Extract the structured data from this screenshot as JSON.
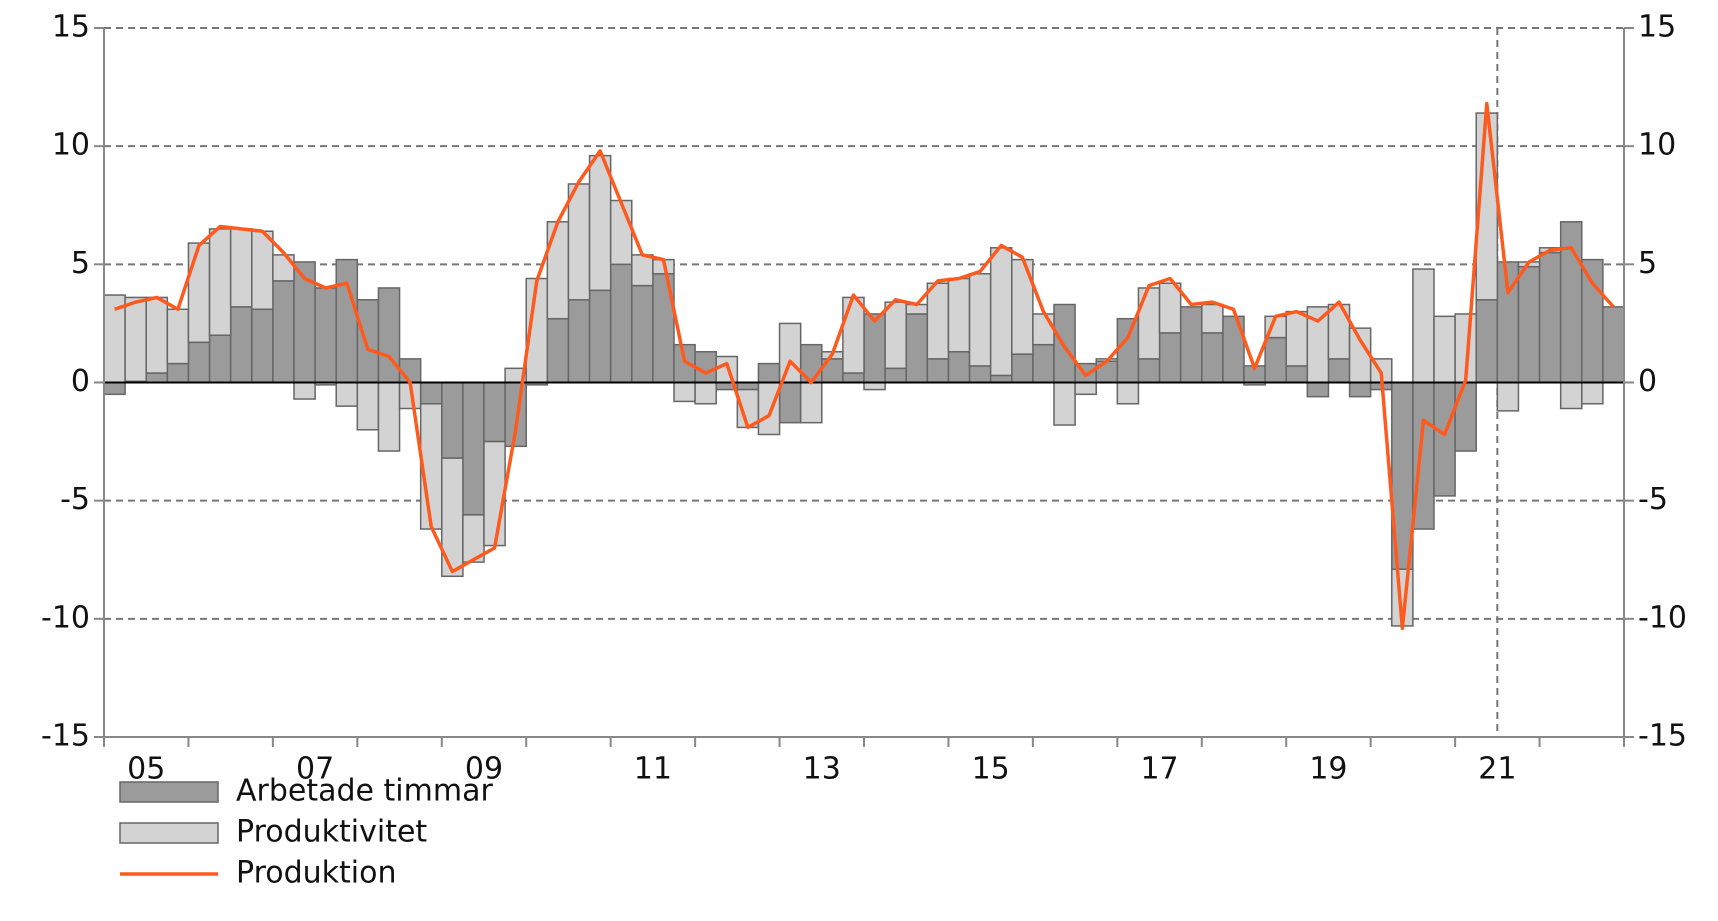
{
  "chart_data": {
    "type": "bar",
    "stacked": true,
    "categories": [
      null,
      null,
      "05",
      null,
      null,
      null,
      null,
      null,
      null,
      null,
      "07",
      null,
      null,
      null,
      null,
      null,
      null,
      null,
      "09",
      null,
      null,
      null,
      null,
      null,
      null,
      null,
      "11",
      null,
      null,
      null,
      null,
      null,
      null,
      null,
      "13",
      null,
      null,
      null,
      null,
      null,
      null,
      null,
      "15",
      null,
      null,
      null,
      null,
      null,
      null,
      null,
      "17",
      null,
      null,
      null,
      null,
      null,
      null,
      null,
      "19",
      null,
      null,
      null,
      null,
      null,
      null,
      null,
      "21",
      null,
      null,
      null,
      null,
      null
    ],
    "series": [
      {
        "name": "Arbetade timmar",
        "color": "#9b9b9b",
        "values": [
          -0.5,
          0.05,
          0.4,
          0.8,
          1.7,
          2.0,
          3.2,
          3.1,
          4.3,
          5.1,
          4.0,
          5.2,
          3.5,
          4.0,
          1.0,
          -0.9,
          -3.2,
          -5.6,
          -2.5,
          -2.7,
          -0.1,
          2.7,
          3.5,
          3.9,
          5.0,
          4.1,
          4.6,
          1.6,
          1.3,
          -0.3,
          -0.3,
          0.8,
          -1.7,
          1.6,
          1.0,
          0.4,
          2.9,
          0.6,
          2.9,
          1.0,
          1.3,
          0.7,
          0.3,
          1.2,
          1.6,
          3.3,
          0.8,
          0.9,
          2.7,
          1.0,
          2.1,
          3.2,
          2.1,
          2.8,
          0.7,
          1.9,
          0.7,
          -0.6,
          1.0,
          -0.6,
          -0.3,
          -7.9,
          -6.2,
          -4.8,
          -2.9,
          3.5,
          5.1,
          4.9,
          5.5,
          6.8,
          5.2,
          3.2
        ]
      },
      {
        "name": "Produktivitet",
        "color": "#d3d3d3",
        "values": [
          3.7,
          3.55,
          3.2,
          2.3,
          4.2,
          4.5,
          3.3,
          3.3,
          1.1,
          -0.7,
          -0.1,
          -1.0,
          -2.0,
          -2.9,
          -1.1,
          -5.3,
          -5.0,
          -2.0,
          -4.4,
          0.6,
          4.4,
          4.1,
          4.9,
          5.7,
          2.7,
          1.3,
          0.6,
          -0.8,
          -0.9,
          1.1,
          -1.6,
          -2.2,
          2.5,
          -1.7,
          0.3,
          3.2,
          -0.3,
          2.8,
          0.4,
          3.2,
          3.1,
          3.9,
          5.4,
          4.0,
          1.3,
          -1.8,
          -0.5,
          0.1,
          -0.9,
          3.0,
          2.1,
          0.0,
          1.2,
          0.0,
          -0.1,
          0.9,
          2.3,
          3.2,
          2.3,
          2.3,
          1.0,
          -2.4,
          4.8,
          2.8,
          2.9,
          7.9,
          -1.2,
          0.2,
          0.2,
          -1.1,
          -0.9,
          0.0
        ]
      },
      {
        "name": "Produktion",
        "color": "#ff5a1e",
        "type": "line",
        "values": [
          3.1,
          3.4,
          3.6,
          3.1,
          5.8,
          6.6,
          6.5,
          6.4,
          5.5,
          4.4,
          4.0,
          4.2,
          1.4,
          1.1,
          0.0,
          -6.1,
          -8.0,
          -7.5,
          -7.0,
          -2.0,
          4.3,
          6.8,
          8.5,
          9.8,
          7.6,
          5.4,
          5.2,
          0.9,
          0.4,
          0.8,
          -1.9,
          -1.4,
          0.9,
          0.0,
          1.2,
          3.7,
          2.6,
          3.5,
          3.3,
          4.3,
          4.4,
          4.7,
          5.8,
          5.3,
          3.0,
          1.5,
          0.3,
          0.9,
          1.9,
          4.1,
          4.4,
          3.3,
          3.4,
          3.1,
          0.6,
          2.8,
          3.0,
          2.6,
          3.4,
          1.8,
          0.4,
          -10.4,
          -1.6,
          -2.2,
          0.1,
          11.8,
          3.8,
          5.1,
          5.6,
          5.7,
          4.2,
          3.2
        ]
      }
    ],
    "ylim": [
      -15,
      15
    ],
    "yticks": [
      -15,
      -10,
      -5,
      0,
      5,
      10,
      15
    ],
    "y2lim": [
      -15,
      15
    ],
    "y2ticks": [
      -15,
      -10,
      -5,
      0,
      5,
      10,
      15
    ],
    "grid": true
  }
}
